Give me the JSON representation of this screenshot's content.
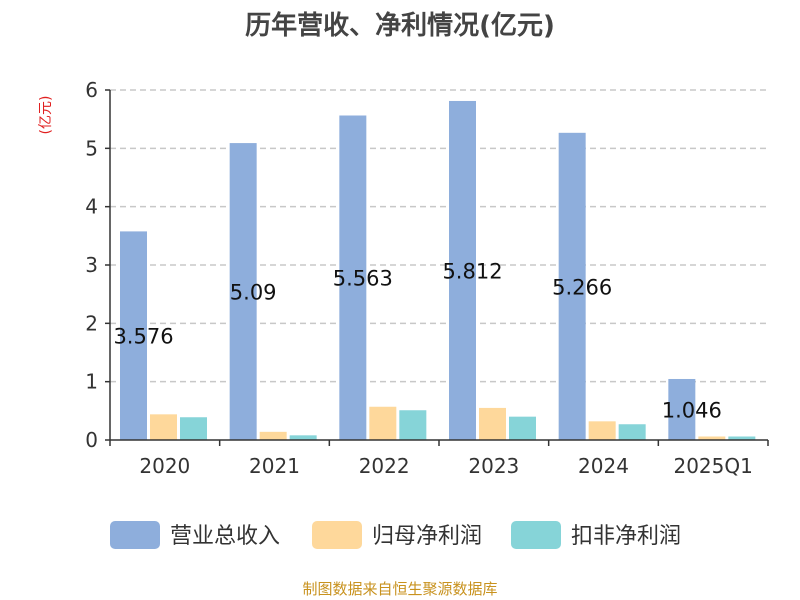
{
  "chart_data": {
    "type": "bar",
    "title": "历年营收、净利情况(亿元)",
    "unit_label": "(亿元)",
    "categories": [
      "2020",
      "2021",
      "2022",
      "2023",
      "2024",
      "2025Q1"
    ],
    "ylim": [
      0,
      6
    ],
    "yticks": [
      "0",
      "1",
      "2",
      "3",
      "4",
      "5",
      "6"
    ],
    "grid": true,
    "legend_position": "bottom",
    "series": [
      {
        "name": "营业总收入",
        "color": "#8eaedc",
        "values": [
          3.576,
          5.09,
          5.563,
          5.812,
          5.266,
          1.046
        ],
        "labels": [
          "3.576",
          "5.09",
          "5.563",
          "5.812",
          "5.266",
          "1.046"
        ]
      },
      {
        "name": "归母净利润",
        "color": "#fed89b",
        "values": [
          0.44,
          0.14,
          0.57,
          0.55,
          0.32,
          0.06
        ]
      },
      {
        "name": "扣非净利润",
        "color": "#86d4d8",
        "values": [
          0.39,
          0.08,
          0.51,
          0.4,
          0.27,
          0.06
        ]
      }
    ]
  },
  "footer": {
    "source": "制图数据来自恒生聚源数据库"
  }
}
